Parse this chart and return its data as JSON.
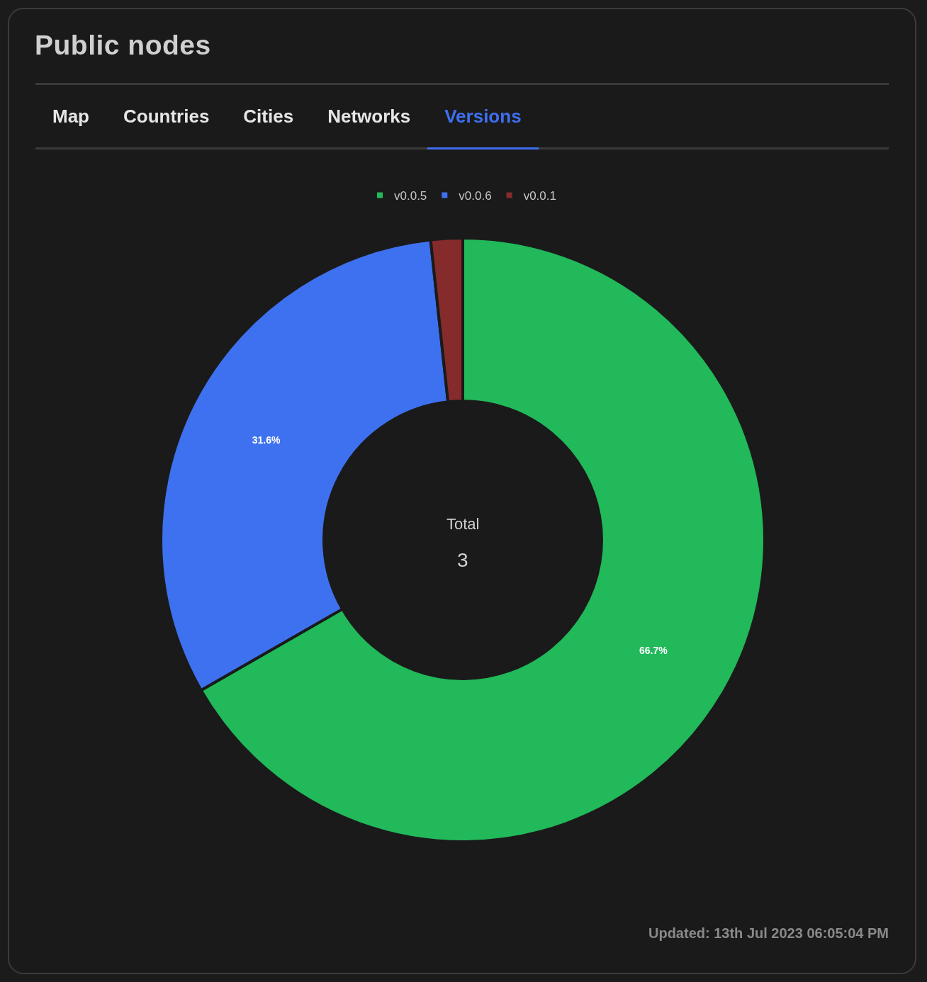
{
  "chart_data": {
    "type": "donut",
    "title": "Public nodes",
    "categories": [
      "v0.0.5",
      "v0.0.6",
      "v0.0.1"
    ],
    "values": [
      66.7,
      31.6,
      1.7
    ],
    "colors": [
      "#21b95a",
      "#3e71ef",
      "#862b2b"
    ],
    "value_labels": [
      "66.7%",
      "31.6%",
      null
    ],
    "legend": "top",
    "annotations": [
      "Map",
      "Countries",
      "Cities",
      "Networks",
      "Versions",
      "Total",
      "3",
      "Updated: 13th Jul 2023 06:05:04 PM"
    ]
  }
}
